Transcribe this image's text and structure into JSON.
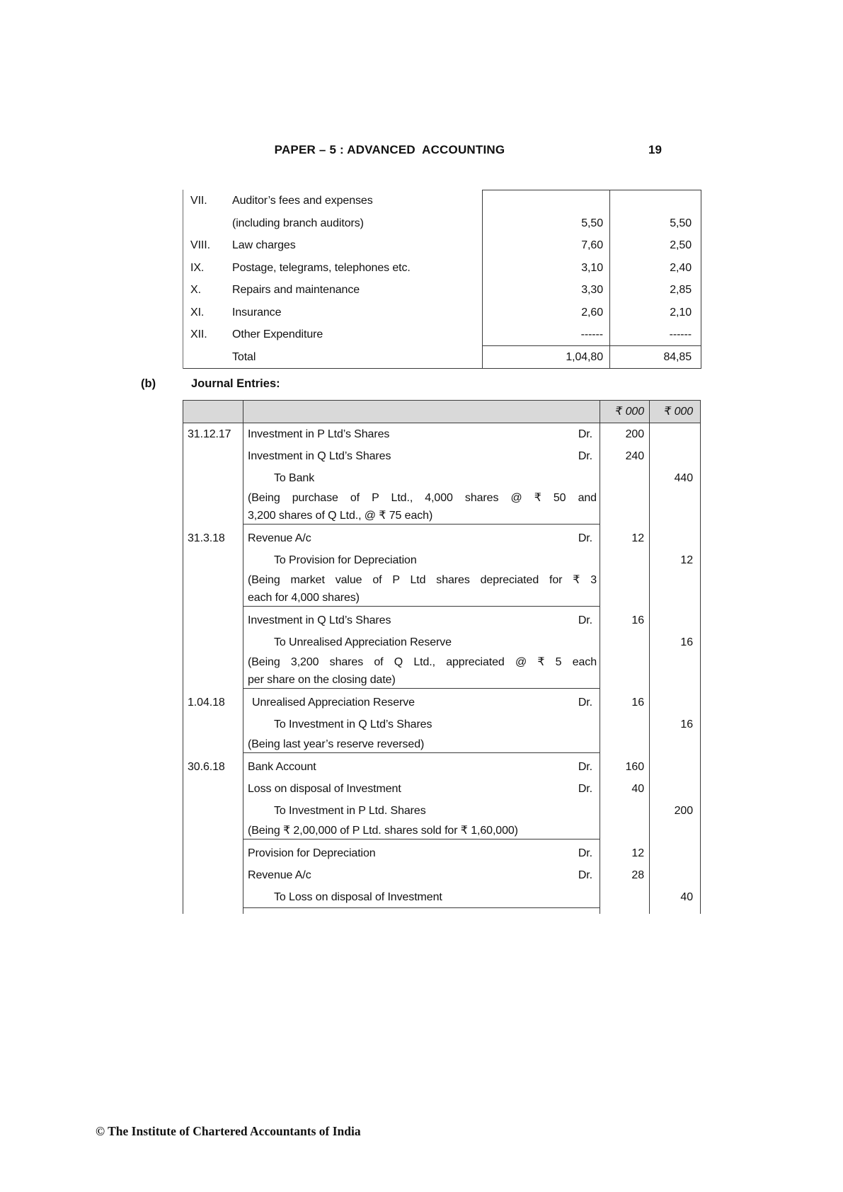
{
  "header": {
    "title": "PAPER – 5 : ADVANCED  ACCOUNTING",
    "page_number": "19"
  },
  "section": {
    "label": "(b)",
    "title": "Journal Entries:"
  },
  "footer": {
    "text": "© The Institute of Chartered Accountants of India"
  },
  "colors": {
    "journal_header_bg": "#d9d9d9",
    "table_border": "#3a3a3a",
    "page_bg": "#ffffff"
  },
  "expenses_table": {
    "rows": [
      {
        "num": "VII.",
        "label": "Auditor’s fees and expenses",
        "amt1": "",
        "amt2": ""
      },
      {
        "num": "",
        "label": "(including branch auditors)",
        "amt1": "5,50",
        "amt2": "5,50"
      },
      {
        "num": "VIII.",
        "label": "Law charges",
        "amt1": "7,60",
        "amt2": "2,50"
      },
      {
        "num": "IX.",
        "label": "Postage, telegrams, telephones etc.",
        "amt1": "3,10",
        "amt2": "2,40"
      },
      {
        "num": "X.",
        "label": "Repairs and maintenance",
        "amt1": "3,30",
        "amt2": "2,85"
      },
      {
        "num": "XI.",
        "label": "Insurance",
        "amt1": "2,60",
        "amt2": "2,10"
      },
      {
        "num": "XII.",
        "label": "Other Expenditure",
        "amt1": "------",
        "amt2": "------"
      },
      {
        "num": "",
        "label": "Total",
        "amt1": "1,04,80",
        "amt2": "84,85"
      }
    ]
  },
  "journal_table": {
    "currency_header": {
      "debit": "₹ 000",
      "credit": "₹ 000"
    },
    "entries": [
      {
        "date": "31.12.17",
        "lines": [
          {
            "text": "Investment in P Ltd’s Shares",
            "dr": "Dr.",
            "debit": "200"
          },
          {
            "text": "Investment in Q Ltd’s Shares",
            "dr": "Dr.",
            "debit": "240"
          },
          {
            "text": "To Bank",
            "credit": "440"
          },
          {
            "narration": [
              "(Being purchase of P Ltd., 4,000 shares @ ₹ 50 and",
              "3,200 shares of Q Ltd., @ ₹ 75 each)"
            ]
          }
        ]
      },
      {
        "date": "31.3.18",
        "lines": [
          {
            "text": "Revenue A/c",
            "dr": "Dr.",
            "debit": "12"
          },
          {
            "text": "To Provision for Depreciation",
            "credit": "12"
          },
          {
            "narration": [
              "(Being market value of P Ltd shares depreciated for ₹ 3",
              "each for 4,000 shares)"
            ]
          }
        ]
      },
      {
        "date": "",
        "lines": [
          {
            "text": "Investment in Q Ltd’s Shares",
            "dr": "Dr.",
            "debit": "16"
          },
          {
            "text": "To Unrealised Appreciation Reserve",
            "credit": "16"
          },
          {
            "narration": [
              "(Being 3,200 shares of Q Ltd., appreciated @ ₹ 5 each",
              "per share on the closing date)"
            ]
          }
        ]
      },
      {
        "date": "1.04.18",
        "lines": [
          {
            "text": "Unrealised Appreciation Reserve",
            "dr": "Dr.",
            "debit": "16"
          },
          {
            "text": "To Investment in Q Ltd’s Shares",
            "credit": "16"
          },
          {
            "narration": [
              "(Being last year’s reserve reversed)"
            ]
          }
        ]
      },
      {
        "date": "30.6.18",
        "lines": [
          {
            "text": "Bank Account",
            "dr": "Dr.",
            "debit": "160"
          },
          {
            "text": "Loss on disposal of Investment",
            "dr": "Dr.",
            "debit": "40"
          },
          {
            "text": "To Investment in P Ltd. Shares",
            "credit": "200"
          },
          {
            "narration": [
              "(Being ₹ 2,00,000 of P Ltd. shares sold for ₹ 1,60,000)"
            ]
          }
        ]
      },
      {
        "date": "",
        "lines": [
          {
            "text": "Provision for Depreciation",
            "dr": "Dr.",
            "debit": "12"
          },
          {
            "text": "Revenue A/c",
            "dr": "Dr.",
            "debit": "28"
          },
          {
            "text": "To Loss on disposal of Investment",
            "credit": "40"
          }
        ]
      }
    ]
  }
}
